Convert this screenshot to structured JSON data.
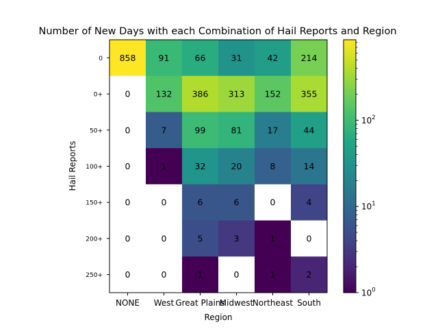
{
  "chart_data": {
    "type": "heatmap",
    "title": "Number of New Days with each Combination of Hail Reports and Region",
    "xlabel": "Region",
    "ylabel": "Hail Reports",
    "x_categories": [
      "NONE",
      "West",
      "Great Plains",
      "Midwest",
      "Northeast",
      "South"
    ],
    "y_categories": [
      "0",
      "0+",
      "50+",
      "100+",
      "150+",
      "200+",
      "250+"
    ],
    "values": [
      [
        858,
        91,
        66,
        31,
        42,
        214
      ],
      [
        0,
        132,
        386,
        313,
        152,
        355
      ],
      [
        0,
        7,
        99,
        81,
        17,
        44
      ],
      [
        0,
        1,
        32,
        20,
        8,
        14
      ],
      [
        0,
        0,
        6,
        6,
        0,
        4
      ],
      [
        0,
        0,
        5,
        3,
        1,
        0
      ],
      [
        0,
        0,
        1,
        0,
        1,
        2
      ]
    ],
    "color_scale": "log",
    "colormap": "viridis",
    "zero_color": "#ffffff",
    "colorbar": {
      "range": [
        1,
        858
      ],
      "tick_labels": [
        {
          "value": 1,
          "base": "10",
          "exp": "0"
        },
        {
          "value": 10,
          "base": "10",
          "exp": "1"
        },
        {
          "value": 100,
          "base": "10",
          "exp": "2"
        }
      ]
    },
    "grid": false
  }
}
